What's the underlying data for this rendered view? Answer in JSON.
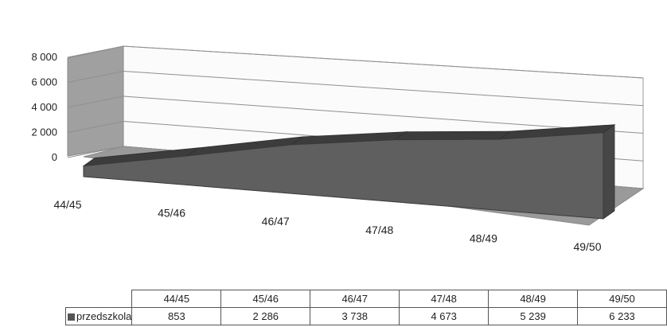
{
  "chart_data": {
    "type": "area",
    "categories": [
      "44/45",
      "45/46",
      "46/47",
      "47/48",
      "48/49",
      "49/50"
    ],
    "series": [
      {
        "name": "przedszkola",
        "values": [
          853,
          2286,
          3738,
          4673,
          5239,
          6233
        ]
      }
    ],
    "y_ticks": [
      "0",
      "2 000",
      "4 000",
      "6 000",
      "8 000"
    ],
    "ylim": [
      0,
      8000
    ],
    "grid": true,
    "style": "3d",
    "legend": "data-table",
    "colors": {
      "series": "#5f5f5f",
      "series_top": "#3c3c3c",
      "walls": "#a0a0a0",
      "floor": "#9a9a9a"
    }
  },
  "table": {
    "headers": [
      "44/45",
      "45/46",
      "46/47",
      "47/48",
      "48/49",
      "49/50"
    ],
    "row_label": "przedszkola",
    "row_values": [
      "853",
      "2 286",
      "3 738",
      "4 673",
      "5 239",
      "6 233"
    ]
  }
}
